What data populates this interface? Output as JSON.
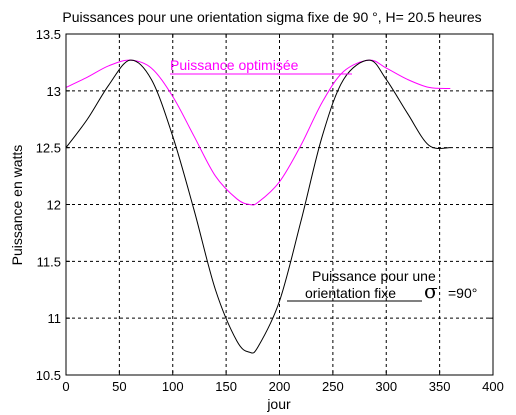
{
  "chart_data": {
    "type": "line",
    "title": "Puissances pour une orientation sigma fixe de 90 °, H= 20.5 heures",
    "xlabel": "jour",
    "ylabel": "Puissance en watts",
    "xlim": [
      0,
      400
    ],
    "ylim": [
      10.5,
      13.5
    ],
    "xticks": [
      0,
      50,
      100,
      150,
      200,
      250,
      300,
      350,
      400
    ],
    "yticks": [
      10.5,
      11,
      11.5,
      12,
      12.5,
      13,
      13.5
    ],
    "xtick_labels": [
      "0",
      "50",
      "100",
      "150",
      "200",
      "250",
      "300",
      "350",
      "400"
    ],
    "ytick_labels": [
      "10.5",
      "11",
      "11.5",
      "12",
      "12.5",
      "13",
      "13.5"
    ],
    "grid": true,
    "series": [
      {
        "color": "#ff00ff",
        "x": [
          0,
          20,
          40,
          60,
          80,
          100,
          120,
          140,
          160,
          172,
          180,
          200,
          220,
          240,
          260,
          284,
          300,
          320,
          340,
          360
        ],
        "y": [
          13.03,
          13.12,
          13.22,
          13.27,
          13.2,
          12.95,
          12.6,
          12.25,
          12.05,
          12.0,
          12.02,
          12.2,
          12.52,
          12.9,
          13.17,
          13.27,
          13.2,
          13.1,
          13.03,
          13.02
        ]
      },
      {
        "color": "#000000",
        "x": [
          0,
          20,
          40,
          60,
          80,
          100,
          120,
          140,
          160,
          172,
          180,
          200,
          220,
          240,
          260,
          284,
          300,
          320,
          340,
          360
        ],
        "y": [
          12.5,
          12.75,
          13.05,
          13.27,
          13.1,
          12.6,
          11.95,
          11.25,
          10.8,
          10.7,
          10.75,
          11.15,
          11.85,
          12.6,
          13.1,
          13.27,
          13.1,
          12.8,
          12.52,
          12.5
        ]
      }
    ],
    "annotations": [
      {
        "text": "Puissance optimisée",
        "color": "#ff00ff"
      },
      {
        "lines": [
          "Puissance pour une",
          "orientation fixe"
        ],
        "symbol": "σ",
        "suffix": "=90°",
        "color": "#000000"
      }
    ]
  }
}
